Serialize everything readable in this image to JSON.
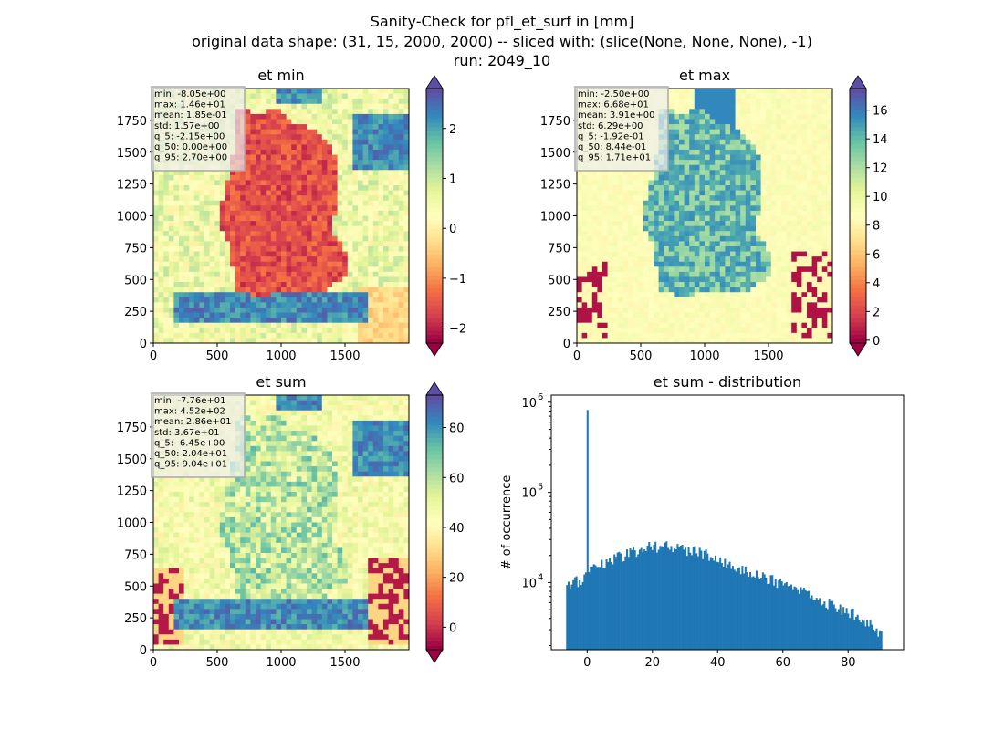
{
  "figure": {
    "title_lines": [
      "Sanity-Check for pfl_et_surf in [mm]",
      "original data shape: (31, 15, 2000, 2000) -- sliced with: (slice(None, None, None), -1)",
      "run: 2049_10"
    ]
  },
  "chart_data": [
    {
      "type": "heatmap",
      "title": "et min",
      "colormap": "Spectral",
      "xlim": [
        0,
        2000
      ],
      "ylim": [
        0,
        2000
      ],
      "xticks": [
        "0",
        "500",
        "1000",
        "1500"
      ],
      "yticks": [
        "0",
        "250",
        "500",
        "750",
        "1000",
        "1250",
        "1500",
        "1750"
      ],
      "colorbar": {
        "min": -2.3,
        "max": 2.8,
        "ticks": [
          "−2",
          "−1",
          "0",
          "1",
          "2"
        ],
        "tick_values": [
          -2,
          -1,
          0,
          1,
          2
        ],
        "extend": "both"
      },
      "stats": [
        "min: -8.05e+00",
        "max: 1.46e+01",
        "mean: 1.85e-01",
        "std: 1.57e+00",
        "q_5: -2.15e+00",
        "q_50: 0.00e+00",
        "q_95: 2.70e+00"
      ]
    },
    {
      "type": "heatmap",
      "title": "et max",
      "colormap": "Spectral",
      "xlim": [
        0,
        2000
      ],
      "ylim": [
        0,
        2000
      ],
      "xticks": [
        "0",
        "500",
        "1000",
        "1500"
      ],
      "yticks": [
        "0",
        "250",
        "500",
        "750",
        "1000",
        "1250",
        "1500",
        "1750"
      ],
      "colorbar": {
        "min": -0.2,
        "max": 17.5,
        "ticks": [
          "0",
          "2",
          "4",
          "6",
          "8",
          "10",
          "12",
          "14",
          "16"
        ],
        "tick_values": [
          0,
          2,
          4,
          6,
          8,
          10,
          12,
          14,
          16
        ],
        "extend": "both"
      },
      "stats": [
        "min: -2.50e+00",
        "max: 6.68e+01",
        "mean: 3.91e+00",
        "std: 6.29e+00",
        "q_5: -1.92e-01",
        "q_50: 8.44e-01",
        "q_95: 1.71e+01"
      ]
    },
    {
      "type": "heatmap",
      "title": "et sum",
      "colormap": "Spectral",
      "xlim": [
        0,
        2000
      ],
      "ylim": [
        0,
        2000
      ],
      "xticks": [
        "0",
        "500",
        "1000",
        "1500"
      ],
      "yticks": [
        "0",
        "250",
        "500",
        "750",
        "1000",
        "1250",
        "1500",
        "1750"
      ],
      "colorbar": {
        "min": -9,
        "max": 93,
        "ticks": [
          "0",
          "20",
          "40",
          "60",
          "80"
        ],
        "tick_values": [
          0,
          20,
          40,
          60,
          80
        ],
        "extend": "both"
      },
      "stats": [
        "min: -7.76e+01",
        "max: 4.52e+02",
        "mean: 2.86e+01",
        "std: 3.67e+01",
        "q_5: -6.45e+00",
        "q_50: 2.04e+01",
        "q_95: 9.04e+01"
      ]
    },
    {
      "type": "bar",
      "title": "et sum - distribution",
      "ylabel": "# of occurrence",
      "yscale": "log",
      "xlim": [
        -11,
        97
      ],
      "ylim": [
        1800,
        1200000
      ],
      "xticks": [
        0,
        20,
        40,
        60,
        80
      ],
      "yticks": [
        {
          "value": 10000,
          "label": "10",
          "exp": "4"
        },
        {
          "value": 100000,
          "label": "10",
          "exp": "5"
        },
        {
          "value": 1000000,
          "label": "10",
          "exp": "6"
        }
      ],
      "bar_color": "#1f77b4",
      "spike": {
        "x": 0,
        "count": 820000
      },
      "bins": {
        "start": -6.45,
        "end": 90.4,
        "count": 200
      },
      "envelope": [
        [
          -6.45,
          8500
        ],
        [
          -2,
          11000
        ],
        [
          0,
          12500
        ],
        [
          3,
          14500
        ],
        [
          8,
          18500
        ],
        [
          12,
          21000
        ],
        [
          20,
          25000
        ],
        [
          25,
          25000
        ],
        [
          30,
          23000
        ],
        [
          35,
          21500
        ],
        [
          40,
          19000
        ],
        [
          45,
          15500
        ],
        [
          50,
          12800
        ],
        [
          55,
          11000
        ],
        [
          60,
          9500
        ],
        [
          65,
          8000
        ],
        [
          70,
          6800
        ],
        [
          75,
          5800
        ],
        [
          80,
          4800
        ],
        [
          85,
          3800
        ],
        [
          90.4,
          2500
        ]
      ]
    }
  ]
}
